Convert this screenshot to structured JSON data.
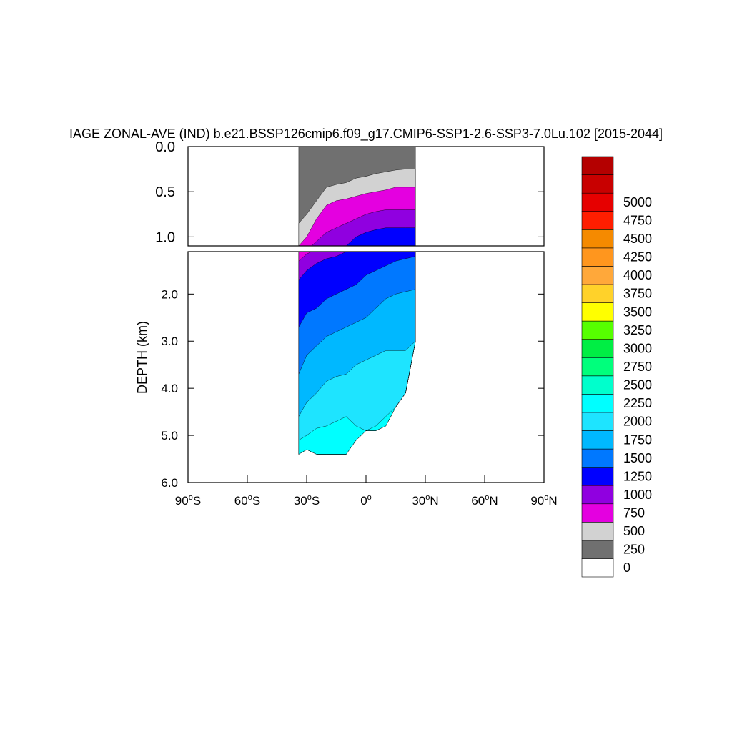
{
  "chart_data": {
    "type": "heatmap",
    "title": "IAGE ZONAL-AVE (IND) b.e21.BSSP126cmip6.f09_g17.CMIP6-SSP1-2.6-SSP3-7.0Lu.102 [2015-2044]",
    "xlabel": "",
    "ylabel": "DEPTH (km)",
    "xlim": [
      -90,
      90
    ],
    "x_ticks": [
      {
        "value": -90,
        "base": "90",
        "deg": "o",
        "hemi": "S"
      },
      {
        "value": -60,
        "base": "60",
        "deg": "o",
        "hemi": "S"
      },
      {
        "value": -30,
        "base": "30",
        "deg": "o",
        "hemi": "S"
      },
      {
        "value": 0,
        "base": "0",
        "deg": "o",
        "hemi": ""
      },
      {
        "value": 30,
        "base": "30",
        "deg": "o",
        "hemi": "N"
      },
      {
        "value": 60,
        "base": "60",
        "deg": "o",
        "hemi": "N"
      },
      {
        "value": 90,
        "base": "90",
        "deg": "o",
        "hemi": "N"
      }
    ],
    "upper_panel": {
      "ylim": [
        0.0,
        1.1
      ],
      "y_ticks": [
        "0.0",
        "0.5",
        "1.0"
      ]
    },
    "lower_panel": {
      "ylim": [
        1.1,
        6.0
      ],
      "y_ticks": [
        "2.0",
        "3.0",
        "4.0",
        "5.0",
        "6.0"
      ]
    },
    "colorbar": {
      "labels": [
        "0",
        "250",
        "500",
        "750",
        "1000",
        "1250",
        "1500",
        "1750",
        "2000",
        "2250",
        "2500",
        "2750",
        "3000",
        "3250",
        "3500",
        "3750",
        "4000",
        "4250",
        "4500",
        "4750",
        "5000"
      ],
      "colors": [
        "#ffffff",
        "#707070",
        "#d2d2d2",
        "#e400e0",
        "#9000e0",
        "#0000ff",
        "#0078ff",
        "#00b8ff",
        "#1ee4ff",
        "#00ffff",
        "#00ffcc",
        "#00ff7c",
        "#00ee44",
        "#56ff00",
        "#ffff00",
        "#ffd22a",
        "#ffa83a",
        "#ff961e",
        "#f58a00",
        "#ff1e00",
        "#e60000",
        "#c80000",
        "#b40000"
      ]
    },
    "fields": {
      "x": [
        -34,
        -30,
        -25,
        -20,
        -15,
        -10,
        -5,
        0,
        5,
        10,
        15,
        20,
        25
      ],
      "surface_250": [
        0.85,
        0.75,
        0.6,
        0.45,
        0.42,
        0.4,
        0.35,
        0.33,
        0.3,
        0.28,
        0.26,
        0.25,
        0.25
      ],
      "contour_500": [
        1.1,
        1.0,
        0.8,
        0.65,
        0.6,
        0.58,
        0.55,
        0.52,
        0.5,
        0.48,
        0.45,
        0.45,
        0.45
      ],
      "contour_750": [
        1.3,
        1.15,
        1.05,
        0.95,
        0.9,
        0.85,
        0.8,
        0.75,
        0.72,
        0.7,
        0.7,
        0.7,
        0.7
      ],
      "contour_1000": [
        1.7,
        1.5,
        1.35,
        1.25,
        1.2,
        1.1,
        1.0,
        0.95,
        0.92,
        0.9,
        0.9,
        0.9,
        0.9
      ],
      "contour_1250": [
        2.7,
        2.4,
        2.3,
        2.1,
        2.0,
        1.9,
        1.8,
        1.6,
        1.5,
        1.4,
        1.3,
        1.25,
        1.2
      ],
      "contour_1500": [
        3.7,
        3.3,
        3.1,
        2.9,
        2.8,
        2.7,
        2.6,
        2.5,
        2.3,
        2.1,
        2.0,
        1.95,
        1.9
      ],
      "contour_1750": [
        4.6,
        4.3,
        4.1,
        3.85,
        3.75,
        3.7,
        3.5,
        3.4,
        3.3,
        3.2,
        3.2,
        3.2,
        3.2
      ],
      "contour_2000": [
        5.1,
        5.0,
        4.85,
        4.8,
        4.7,
        4.6,
        4.8,
        4.9,
        4.8,
        4.6,
        4.7,
        4.5,
        3.3
      ]
    },
    "bottom_depth": [
      5.4,
      5.3,
      5.4,
      5.4,
      5.4,
      5.4,
      5.1,
      4.9,
      4.9,
      4.8,
      4.4,
      4.1,
      3.0
    ]
  }
}
